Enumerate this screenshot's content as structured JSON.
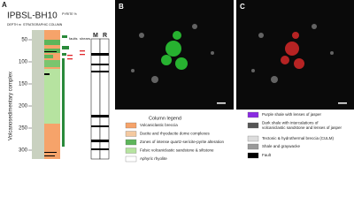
{
  "panel_a": {
    "label": "A",
    "title": "IPBSL-BH10",
    "headers": {
      "depth": "DEPTH m",
      "column": "STRATIGRAPHIC COLUMN",
      "pyrite": "PYRITE %",
      "faults": "faults",
      "shears": "shears",
      "m": "M",
      "r": "R"
    },
    "depth_ticks": [
      "50",
      "100",
      "150",
      "200",
      "250",
      "300"
    ],
    "unit_label": "Volcanosedimentary complex"
  },
  "panel_b": {
    "label": "B"
  },
  "panel_c": {
    "label": "C"
  },
  "legend": {
    "title": "Column legend",
    "left": [
      "Volcaniclastic breccia",
      "Dacite and rhyodacite dome complexes",
      "Zones of intense quartz-sericite-pyrite alteration",
      "Felsic volcaniclastic sandstone & siltstone",
      "Aphyric rhyolite"
    ],
    "right": [
      "Purple shale with lenses of jasper",
      "Dark shale with intercalations of volcaniclastic sandstone and lenses of jasper",
      "Tectonic & hydrothermal breccia (CULM)",
      "Shale and graywacke",
      "Fault"
    ]
  }
}
